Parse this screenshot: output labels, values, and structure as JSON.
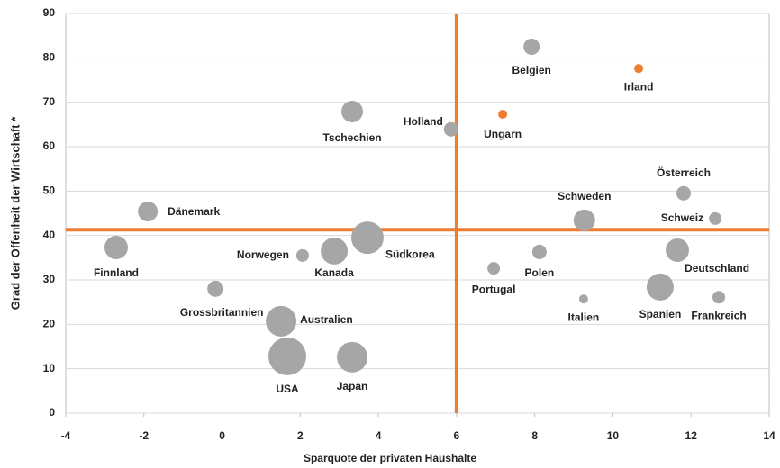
{
  "chart_data": {
    "type": "bubble",
    "x_label": "Sparquote der privaten Haushalte",
    "y_label": "Grad der Offenheit der Wirtschaft *",
    "labels": [
      "Belgien",
      "Irland",
      "Ungarn",
      "Holland",
      "Tschechien",
      "Dänemark",
      "Finnland",
      "Norwegen",
      "Kanada",
      "Südkorea",
      "Grossbritannien",
      "Australien",
      "USA",
      "Japan",
      "Portugal",
      "Polen",
      "Italien",
      "Schweden",
      "Österreich",
      "Schweiz",
      "Deutschland",
      "Spanien",
      "Frankreich"
    ],
    "x": [
      7.92,
      10.66,
      7.18,
      5.86,
      3.33,
      -1.9,
      -2.71,
      2.06,
      2.87,
      3.72,
      -0.17,
      1.51,
      1.67,
      3.33,
      6.95,
      8.12,
      9.25,
      9.27,
      11.81,
      12.62,
      11.65,
      11.21,
      12.71
    ],
    "values": [
      82.5,
      77.6,
      67.3,
      63.9,
      67.9,
      45.4,
      37.3,
      35.5,
      36.5,
      39.5,
      28,
      20.7,
      12.8,
      12.6,
      32.6,
      36.3,
      25.7,
      43.4,
      49.5,
      43.8,
      36.7,
      28.4,
      26.1
    ],
    "sizes": [
      9,
      5,
      5,
      8,
      12,
      11,
      13,
      7,
      15,
      18,
      9,
      17,
      21,
      17,
      7,
      8,
      5,
      12,
      8,
      7,
      13,
      15,
      7
    ],
    "colors": [
      "#a6a6a6",
      "#ed7d31",
      "#ed7d31",
      "#a6a6a6",
      "#a6a6a6",
      "#a6a6a6",
      "#a6a6a6",
      "#a6a6a6",
      "#a6a6a6",
      "#a6a6a6",
      "#a6a6a6",
      "#a6a6a6",
      "#a6a6a6",
      "#a6a6a6",
      "#a6a6a6",
      "#a6a6a6",
      "#a6a6a6",
      "#a6a6a6",
      "#a6a6a6",
      "#a6a6a6",
      "#a6a6a6",
      "#a6a6a6",
      "#a6a6a6"
    ],
    "xlim": [
      -4,
      14
    ],
    "xticks": [
      -4,
      -2,
      0,
      2,
      4,
      6,
      8,
      10,
      12,
      14
    ],
    "ylim": [
      0,
      90
    ],
    "yticks": [
      0,
      10,
      20,
      30,
      40,
      50,
      60,
      70,
      80,
      90
    ],
    "reference_lines": {
      "x": 6,
      "y": 41.3,
      "color": "#ed7d31"
    },
    "grid": true
  }
}
